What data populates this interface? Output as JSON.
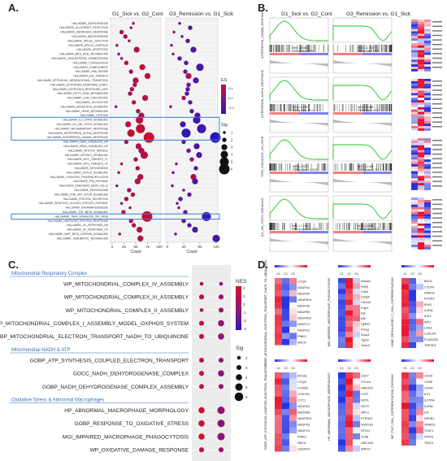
{
  "panels": {
    "a": "A.",
    "b": "B.",
    "c": "C.",
    "d": "D."
  },
  "panel_a": {
    "col1_title": "G1_Sick vs. G2_Cont",
    "col2_title": "G3_Remission vs. G1_Sick",
    "xlabel": "Count",
    "ticks1": [
      "0",
      "25",
      "50",
      "75",
      "100"
    ],
    "ticks2": [
      "0",
      "40",
      "80",
      "120"
    ],
    "legend_es_title": "ES",
    "legend_es_ticks": [
      "0.4",
      "0.0",
      "-0.4"
    ],
    "legend_sig_title": "Sig",
    "legend_sig_ticks": [
      "1",
      "2",
      "3",
      "4",
      "5",
      "6"
    ],
    "colors": {
      "pos": "#c8102e",
      "neg": "#2a18b8",
      "highlight": "#3b7dd8"
    },
    "pathways": [
      "HALLMARK_ADIPOGENESIS",
      "HALLMARK_ALLOGRAFT_REJECTION",
      "HALLMARK_ANDROGEN_RESPONSE",
      "HALLMARK_ANGIOGENESIS",
      "HALLMARK_APICAL_JUNCTION",
      "HALLMARK_APICAL_SURFACE",
      "HALLMARK_APOPTOSIS",
      "HALLMARK_BILE_ACID_METABOLISM",
      "HALLMARK_CHOLESTEROL_HOMEOSTASIS",
      "HALLMARK_COAGULATION",
      "HALLMARK_COMPLEMENT",
      "HALLMARK_DNA_REPAIR",
      "HALLMARK_E2F_TARGETS",
      "HALLMARK_EPITHELIAL_MESENCHYMAL_TRANSITION",
      "HALLMARK_ESTROGEN_RESPONSE_EARLY",
      "HALLMARK_ESTROGEN_RESPONSE_LATE",
      "HALLMARK_FATTY_ACID_METABOLISM",
      "HALLMARK_G2M_CHECKPOINT",
      "HALLMARK_GLYCOLYSIS",
      "HALLMARK_HEDGEHOG_SIGNALING",
      "HALLMARK_HEME_METABOLISM",
      "HALLMARK_HYPOXIA",
      "HALLMARK_IL2_STAT5_SIGNALING",
      "HALLMARK_IL6_JAK_STAT3_SIGNALING",
      "HALLMARK_INFLAMMATORY_RESPONSE",
      "HALLMARK_INTERFERON_ALPHA_RESPONSE",
      "HALLMARK_INTERFERON_GAMMA_RESPONSE",
      "HALLMARK_KRAS_SIGNALING_DN",
      "HALLMARK_KRAS_SIGNALING_UP",
      "HALLMARK_MITOTIC_SPINDLE",
      "HALLMARK_MTORC1_SIGNALING",
      "HALLMARK_MYC_TARGETS_V1",
      "HALLMARK_MYC_TARGETS_V2",
      "HALLMARK_MYOGENESIS",
      "HALLMARK_NOTCH_SIGNALING",
      "HALLMARK_OXIDATIVE_PHOSPHORYLATION",
      "HALLMARK_P53_PATHWAY",
      "HALLMARK_PANCREAS_BETA_CELLS",
      "HALLMARK_PEROXISOME",
      "HALLMARK_PI3K_AKT_MTOR_SIGNALING",
      "HALLMARK_PROTEIN_SECRETION",
      "HALLMARK_REACTIVE_OXYGEN_SPECIES_PATHWAY",
      "HALLMARK_SPERMATOGENESIS",
      "HALLMARK_TGF_BETA_SIGNALING",
      "HALLMARK_TNFA_SIGNALING_VIA_NFKB",
      "HALLMARK_UNFOLDED_PROTEIN_RESPONSE",
      "HALLMARK_UV_RESPONSE_DN",
      "HALLMARK_UV_RESPONSE_UP",
      "HALLMARK_WNT_BETA_CATENIN_SIGNALING",
      "HALLMARK_XENOBIOTIC_METABOLISM"
    ],
    "dots1": [
      [
        45,
        0.2,
        1
      ],
      [
        40,
        0.1,
        1
      ],
      [
        20,
        0.3,
        2
      ],
      [
        28,
        0.2,
        2
      ],
      [
        36,
        0.25,
        1
      ],
      [
        10,
        0.1,
        1
      ],
      [
        52,
        0.3,
        3
      ],
      [
        14,
        0.1,
        1
      ],
      [
        20,
        0.2,
        1
      ],
      [
        30,
        0.3,
        2
      ],
      [
        64,
        0.4,
        3
      ],
      [
        40,
        0.2,
        2
      ],
      [
        75,
        0.4,
        3
      ],
      [
        50,
        0.3,
        3
      ],
      [
        48,
        0.3,
        2
      ],
      [
        42,
        0.3,
        2
      ],
      [
        38,
        0.2,
        2
      ],
      [
        70,
        0.35,
        3
      ],
      [
        46,
        0.3,
        2
      ],
      [
        8,
        0.1,
        1
      ],
      [
        55,
        0.3,
        2
      ],
      [
        62,
        0.35,
        3
      ],
      [
        58,
        0.4,
        4
      ],
      [
        34,
        0.35,
        3
      ],
      [
        60,
        0.45,
        5
      ],
      [
        40,
        0.45,
        4
      ],
      [
        78,
        0.5,
        6
      ],
      [
        30,
        0.3,
        2
      ],
      [
        56,
        0.3,
        3
      ],
      [
        62,
        0.3,
        3
      ],
      [
        68,
        0.35,
        4
      ],
      [
        50,
        0.25,
        2
      ],
      [
        20,
        0.2,
        1
      ],
      [
        54,
        0.3,
        2
      ],
      [
        14,
        0.2,
        1
      ],
      [
        60,
        0.35,
        3
      ],
      [
        54,
        0.3,
        3
      ],
      [
        10,
        0.1,
        1
      ],
      [
        36,
        0.2,
        2
      ],
      [
        44,
        0.3,
        2
      ],
      [
        30,
        0.25,
        2
      ],
      [
        20,
        0.2,
        1
      ],
      [
        38,
        0.2,
        1
      ],
      [
        24,
        0.3,
        2
      ],
      [
        74,
        0.5,
        6
      ],
      [
        40,
        0.3,
        2
      ],
      [
        46,
        0.3,
        2
      ],
      [
        58,
        0.35,
        3
      ],
      [
        16,
        0.2,
        1
      ],
      [
        60,
        0.3,
        3
      ]
    ],
    "dots2": [
      [
        30,
        -0.1,
        1
      ],
      [
        56,
        -0.3,
        2
      ],
      [
        16,
        0.2,
        1
      ],
      [
        36,
        -0.2,
        1
      ],
      [
        50,
        -0.2,
        2
      ],
      [
        10,
        0.1,
        1
      ],
      [
        64,
        -0.3,
        3
      ],
      [
        14,
        0.2,
        1
      ],
      [
        30,
        -0.2,
        2
      ],
      [
        46,
        -0.3,
        2
      ],
      [
        80,
        -0.35,
        4
      ],
      [
        44,
        -0.2,
        2
      ],
      [
        52,
        0.3,
        3
      ],
      [
        70,
        -0.3,
        3
      ],
      [
        52,
        -0.2,
        2
      ],
      [
        50,
        -0.2,
        2
      ],
      [
        48,
        -0.2,
        2
      ],
      [
        40,
        0.25,
        2
      ],
      [
        56,
        -0.2,
        2
      ],
      [
        8,
        0.1,
        1
      ],
      [
        60,
        -0.25,
        2
      ],
      [
        74,
        -0.3,
        3
      ],
      [
        72,
        -0.35,
        4
      ],
      [
        38,
        -0.35,
        3
      ],
      [
        84,
        -0.4,
        5
      ],
      [
        46,
        -0.45,
        5
      ],
      [
        118,
        -0.5,
        6
      ],
      [
        40,
        -0.2,
        2
      ],
      [
        72,
        -0.3,
        3
      ],
      [
        52,
        -0.1,
        2
      ],
      [
        78,
        -0.3,
        3
      ],
      [
        60,
        0.2,
        2
      ],
      [
        22,
        0.1,
        1
      ],
      [
        70,
        -0.25,
        2
      ],
      [
        14,
        -0.2,
        1
      ],
      [
        64,
        0.3,
        3
      ],
      [
        68,
        -0.3,
        3
      ],
      [
        12,
        -0.1,
        1
      ],
      [
        40,
        -0.1,
        1
      ],
      [
        54,
        -0.2,
        2
      ],
      [
        32,
        -0.2,
        2
      ],
      [
        24,
        -0.1,
        1
      ],
      [
        28,
        0.1,
        1
      ],
      [
        44,
        -0.2,
        2
      ],
      [
        96,
        -0.45,
        5
      ],
      [
        40,
        -0.2,
        2
      ],
      [
        54,
        -0.25,
        2
      ],
      [
        68,
        -0.3,
        3
      ],
      [
        20,
        -0.1,
        1
      ],
      [
        120,
        -0.35,
        4
      ]
    ]
  },
  "panel_b": {
    "col1_title": "G1_Sick vs. G2_Cont",
    "col2_title": "G3_Remission vs. G1_Sick",
    "rows": [
      {
        "name": "INTERFERON_GAMMA_RESPONSE",
        "left_stats": [
          "NES = 2.402",
          "FDR q-value < 0.0"
        ],
        "right_stats": [
          "NES = -2.774",
          "FDR q-value < 0.0"
        ]
      },
      {
        "name": "INTERFERON_ALPHA_RESPONSE",
        "left_stats": [
          "NES = 1.978",
          "FDR q-value < 0.0"
        ],
        "right_stats": [
          "NES = -2.405",
          "FDR q-value < 0.0"
        ]
      },
      {
        "name": "TNFA_SIGNALING_VIA_NFKB",
        "left_stats": [
          "NES = 1.971",
          "FDR q-value = 0.0007"
        ],
        "right_stats": [
          "NES = -2.420",
          "FDR q-value < 0.0"
        ]
      },
      {
        "name": "IL6_JAK_STAT3_SIGNALING",
        "left_stats": [
          "NES = 1.71e",
          "FDR q-value = 0.0039"
        ],
        "right_stats": [
          "NES = -2.098",
          "FDR q-value < 0.0"
        ]
      }
    ]
  },
  "panel_c": {
    "groups": [
      {
        "header": "Mitochondrial Respiratory Complex",
        "items": [
          {
            "label": "WP_MITOCHONDRIAL_COMPLEX_IV_ASSEMBLY",
            "nes1": 1.5,
            "sig1": 2,
            "nes2": -1.5,
            "sig2": 2
          },
          {
            "label": "WP_MITOCHONDRIAL_COMPLEX_III_ASSEMBLY",
            "nes1": 1.8,
            "sig1": 3,
            "nes2": -1.8,
            "sig2": 3
          },
          {
            "label": "WP_MITOCHONDRIAL_COMPLEX_II_ASSEMBLY",
            "nes1": 1.6,
            "sig1": 2,
            "nes2": -1.6,
            "sig2": 3
          },
          {
            "label": "WP_MITOCHONDRIAL_COMPLEX_I_ASSEMBLY_MODEL_OXPHOS_SYSTEM",
            "nes1": 2.0,
            "sig1": 3,
            "nes2": -2.0,
            "sig2": 4
          },
          {
            "label": "GOBP_MITOCHONDRIAL_ELECTRON_TRANSPORT_NADH_TO_UBIQUINONE",
            "nes1": 2.1,
            "sig1": 3,
            "nes2": -2.1,
            "sig2": 4
          }
        ]
      },
      {
        "header": "Mitochondrial NADH & ATP",
        "items": [
          {
            "label": "GOBP_ATP_SYNTHESIS_COUPLED_ELECTRON_TRANSPORT",
            "nes1": 1.9,
            "sig1": 3,
            "nes2": -1.9,
            "sig2": 3
          },
          {
            "label": "GOCC_NADH_DEHYDROGENASE_COMPLEX",
            "nes1": 2.2,
            "sig1": 3,
            "nes2": -2.2,
            "sig2": 4
          },
          {
            "label": "GOBP_NADH_DEHYDROGENASE_COMPLEX_ASSEMBLY",
            "nes1": 2.0,
            "sig1": 3,
            "nes2": -2.0,
            "sig2": 3
          }
        ]
      },
      {
        "header": "Oxidative Stress & Abnormal Macrophages",
        "items": [
          {
            "label": "HP_ABNORMAL_MACROPHAGE_MORPHOLOGY",
            "nes1": 2.5,
            "sig1": 4,
            "nes2": -2.0,
            "sig2": 5
          },
          {
            "label": "GOBP_RESPONSE_TO_OXIDATIVE_STRESS",
            "nes1": 2.3,
            "sig1": 4,
            "nes2": -2.4,
            "sig2": 5
          },
          {
            "label": "MGI_IMPAIRED_MACROPHAGE_PHAGOCYTOSIS",
            "nes1": 2.4,
            "sig1": 4,
            "nes2": -2.3,
            "sig2": 5
          },
          {
            "label": "WP_OXIDATIVE_DAMAGE_RESPONSE",
            "nes1": 1.8,
            "sig1": 3,
            "nes2": -1.6,
            "sig2": 3
          }
        ]
      }
    ],
    "xticks": [
      "G1 vs G2",
      "G3 vs G1"
    ],
    "legend_nes_title": "NES",
    "legend_nes_ticks": [
      "2",
      "1",
      "0",
      "-1",
      "-2",
      "-3"
    ],
    "legend_sig_title": "Sig",
    "legend_sig_ticks": [
      "2",
      "3",
      "4",
      "5",
      "6"
    ],
    "header_color": "#3b6fb6"
  },
  "panel_d": {
    "heatmaps": [
      {
        "title": "GOBP_MITOCHONDRIAL_ELECTRON_TRANSPORT_NADH_TO_UBIQUINONE",
        "genes": [
          "COQ9",
          "NDUFA4",
          "NDUFS2",
          "NDUFB10",
          "NDUFS6",
          "NDUFB9",
          "NDUFA10",
          "NDUFV1",
          "NDUFS1",
          "PINK1",
          "SNCA"
        ]
      },
      {
        "title": "MGI_IMPAIRED_MACROPHAGE_PHAGOCYTOSIS",
        "genes": [
          "Nmaa1",
          "Sapg",
          "Cd44",
          "Cebpb",
          "Clec4d",
          "Fcgr1",
          "Fgr",
          "Irf8",
          "Lgals3",
          "Prkcg",
          "Socs1",
          "Tgm2",
          "Trem2"
        ]
      },
      {
        "title": "GOBP_REGULATORY_T_CELL_DIFFERENTIATION",
        "genes": [
          "BCL6",
          "CTLA4",
          "FANCA",
          "FOXP3",
          "IFNG",
          "IL2RA",
          "IL4I1",
          "IRF1",
          "LAG3",
          "LGALS9",
          "PLA2G2D",
          "TNFSF4"
        ]
      },
      {
        "title": "GOBP_ATP_SYNTHESIS_COUPLED_ELECTRON_TRANSPORT",
        "genes": [
          "AFG3L",
          "COQ9",
          "COX5B",
          "COX7A1",
          "CYC1",
          "NDUFA4",
          "NDUFB9",
          "NDUFB10",
          "NDUFS2",
          "NDUFV1",
          "PINK1",
          "SNCA",
          "UQCR10"
        ]
      },
      {
        "title": "HP_ABNORMAL_MACROPHAGE_MORPHOLOGY",
        "genes": [
          "CD27",
          "CTLA4",
          "HAVCR2",
          "LYST",
          "NCF1",
          "NCF2",
          "NPC1",
          "PTPN22",
          "SH2D1A",
          "STX11",
          "TLR8",
          "UNC13D",
          "ZNFX1"
        ]
      },
      {
        "title": "WP_TH17_CELL_DIFFERENTIATION_PATHWAY",
        "genes": [
          "CD3D",
          "CD3E",
          "CD3G",
          "IL21",
          "IL27RA",
          "IL2RA",
          "IL6",
          "NFKB1",
          "SMAD3",
          "STAT1",
          "STAT3",
          "TBX21"
        ]
      }
    ],
    "col_labels": [
      "G1",
      "G2",
      "G3"
    ],
    "colors": {
      "hi": "#e8102a",
      "lo": "#2233e0",
      "mid": "#ffffff"
    }
  }
}
